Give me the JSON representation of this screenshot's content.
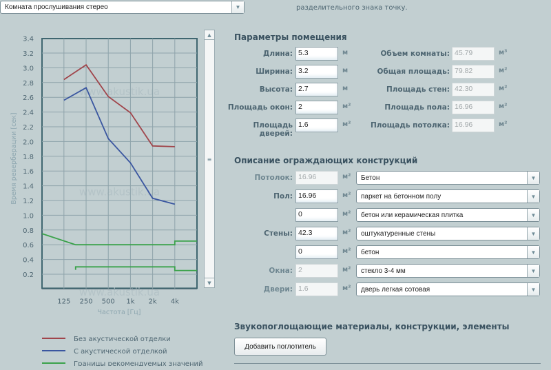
{
  "preset_select": {
    "value": "Комната прослушивания стерео"
  },
  "hint_text": "разделительного знака точку.",
  "room": {
    "title": "Параметры помещения",
    "fields": [
      {
        "label": "Длина:",
        "value": "5.3",
        "unit": "м"
      },
      {
        "label": "Ширина:",
        "value": "3.2",
        "unit": "м"
      },
      {
        "label": "Высота:",
        "value": "2.7",
        "unit": "м"
      },
      {
        "label": "Площадь окон:",
        "value": "2",
        "unit": "м²"
      },
      {
        "label": "Площадь дверей:",
        "value": "1.6",
        "unit": "м²"
      }
    ],
    "computed": [
      {
        "label": "Объем комнаты:",
        "value": "45.79",
        "unit": "м³"
      },
      {
        "label": "Общая площадь:",
        "value": "79.82",
        "unit": "м²"
      },
      {
        "label": "Площадь стен:",
        "value": "42.30",
        "unit": "м²"
      },
      {
        "label": "Площадь пола:",
        "value": "16.96",
        "unit": "м²"
      },
      {
        "label": "Площадь потолка:",
        "value": "16.96",
        "unit": "м²"
      }
    ]
  },
  "constructions": {
    "title": "Описание ограждающих конструкций",
    "rows": [
      {
        "label": "Потолок:",
        "value": "16.96",
        "unit": "м²",
        "material": "Бетон",
        "readonly": true
      },
      {
        "label": "Пол:",
        "value": "16.96",
        "unit": "м²",
        "material": "паркет на бетонном полу",
        "readonly": false
      },
      {
        "label": "",
        "value": "0",
        "unit": "м²",
        "material": "бетон или керамическая плитка",
        "readonly": false
      },
      {
        "label": "Стены:",
        "value": "42.3",
        "unit": "м²",
        "material": "оштукатуренные стены",
        "readonly": false
      },
      {
        "label": "",
        "value": "0",
        "unit": "м²",
        "material": "бетон",
        "readonly": false
      },
      {
        "label": "Окна:",
        "value": "2",
        "unit": "м²",
        "material": "стекло 3-4 мм",
        "readonly": true
      },
      {
        "label": "Двери:",
        "value": "1.6",
        "unit": "м²",
        "material": "дверь легкая сотовая",
        "readonly": true
      }
    ]
  },
  "absorbers": {
    "title": "Звукопоглощающие материалы, конструкции, элементы",
    "add_button": "Добавить поглотитель"
  },
  "chart_data": {
    "type": "line",
    "watermark": "www.akustik.ua",
    "xlabel": "Частота [Гц]",
    "ylabel": "Время реверберации [сек]",
    "x_ticks": [
      "125",
      "250",
      "500",
      "1k",
      "2k",
      "4k"
    ],
    "y_ticks": [
      "0.2",
      "0.4",
      "0.6",
      "0.8",
      "1.0",
      "1.2",
      "1.4",
      "1.6",
      "1.8",
      "2.0",
      "2.2",
      "2.4",
      "2.6",
      "2.8",
      "3.0",
      "3.2",
      "3.4"
    ],
    "ylim": [
      0,
      3.4
    ],
    "grid": true,
    "series": [
      {
        "name": "Без акустической отделки",
        "color": "#a0454b",
        "x": [
          "125",
          "250",
          "500",
          "1k",
          "2k",
          "4k"
        ],
        "values": [
          2.84,
          3.04,
          2.61,
          2.39,
          1.94,
          1.93
        ]
      },
      {
        "name": "С акустической отделкой",
        "color": "#3a56a0",
        "x": [
          "125",
          "250",
          "500",
          "1k",
          "2k",
          "4k"
        ],
        "values": [
          2.56,
          2.73,
          2.04,
          1.71,
          1.23,
          1.15
        ]
      },
      {
        "name": "Границы рекомендуемых значений",
        "color": "#3aa24a",
        "upper": [
          [
            63,
            0.75
          ],
          [
            180,
            0.6
          ],
          [
            4000,
            0.6
          ],
          [
            4000,
            0.65
          ],
          [
            8000,
            0.65
          ]
        ],
        "lower": [
          [
            180,
            0.26
          ],
          [
            180,
            0.3
          ],
          [
            4000,
            0.3
          ],
          [
            4000,
            0.25
          ],
          [
            8000,
            0.25
          ]
        ]
      }
    ],
    "legend_placement": "bottom"
  }
}
